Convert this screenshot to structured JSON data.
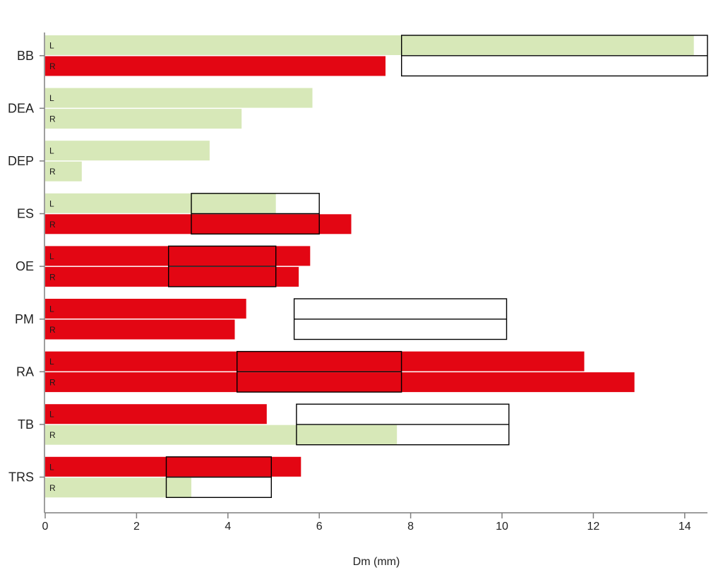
{
  "chart_data": {
    "type": "bar",
    "orientation": "horizontal",
    "title": "",
    "xlabel": "Dm (mm)",
    "ylabel": "",
    "xlim": [
      0,
      14.5
    ],
    "x_ticks": [
      0,
      2,
      4,
      6,
      8,
      10,
      12,
      14
    ],
    "x_tick_labels": [
      "0",
      "2",
      "4",
      "6",
      "8",
      "10",
      "12",
      "14"
    ],
    "grid": false,
    "legend": "none",
    "colors": {
      "red": "#e30613",
      "green": "#d7e8b8",
      "axis": "#7f7f7f",
      "box": "#000000"
    },
    "sides": [
      "L",
      "R"
    ],
    "categories": [
      "BB",
      "DEA",
      "DEP",
      "ES",
      "OE",
      "PM",
      "RA",
      "TB",
      "TRS"
    ],
    "bars": [
      {
        "muscle": "BB",
        "side": "L",
        "value": 14.2,
        "color": "green"
      },
      {
        "muscle": "BB",
        "side": "R",
        "value": 7.45,
        "color": "red"
      },
      {
        "muscle": "DEA",
        "side": "L",
        "value": 5.85,
        "color": "green"
      },
      {
        "muscle": "DEA",
        "side": "R",
        "value": 4.3,
        "color": "green"
      },
      {
        "muscle": "DEP",
        "side": "L",
        "value": 3.6,
        "color": "green"
      },
      {
        "muscle": "DEP",
        "side": "R",
        "value": 0.8,
        "color": "green"
      },
      {
        "muscle": "ES",
        "side": "L",
        "value": 5.05,
        "color": "green"
      },
      {
        "muscle": "ES",
        "side": "R",
        "value": 6.7,
        "color": "red"
      },
      {
        "muscle": "OE",
        "side": "L",
        "value": 5.8,
        "color": "red"
      },
      {
        "muscle": "OE",
        "side": "R",
        "value": 5.55,
        "color": "red"
      },
      {
        "muscle": "PM",
        "side": "L",
        "value": 4.4,
        "color": "red"
      },
      {
        "muscle": "PM",
        "side": "R",
        "value": 4.15,
        "color": "red"
      },
      {
        "muscle": "RA",
        "side": "L",
        "value": 11.8,
        "color": "red"
      },
      {
        "muscle": "RA",
        "side": "R",
        "value": 12.9,
        "color": "red"
      },
      {
        "muscle": "TB",
        "side": "L",
        "value": 4.85,
        "color": "red"
      },
      {
        "muscle": "TB",
        "side": "R",
        "value": 7.7,
        "color": "green"
      },
      {
        "muscle": "TRS",
        "side": "L",
        "value": 5.6,
        "color": "red"
      },
      {
        "muscle": "TRS",
        "side": "R",
        "value": 3.2,
        "color": "green"
      }
    ],
    "reference_ranges": [
      {
        "muscle": "BB",
        "min": 7.8,
        "max": 14.5
      },
      {
        "muscle": "ES",
        "min": 3.2,
        "max": 6.0
      },
      {
        "muscle": "OE",
        "min": 2.7,
        "max": 5.05
      },
      {
        "muscle": "PM",
        "min": 5.45,
        "max": 10.1
      },
      {
        "muscle": "RA",
        "min": 4.2,
        "max": 7.8
      },
      {
        "muscle": "TB",
        "min": 5.5,
        "max": 10.15
      },
      {
        "muscle": "TRS",
        "min": 2.65,
        "max": 4.95
      }
    ]
  }
}
